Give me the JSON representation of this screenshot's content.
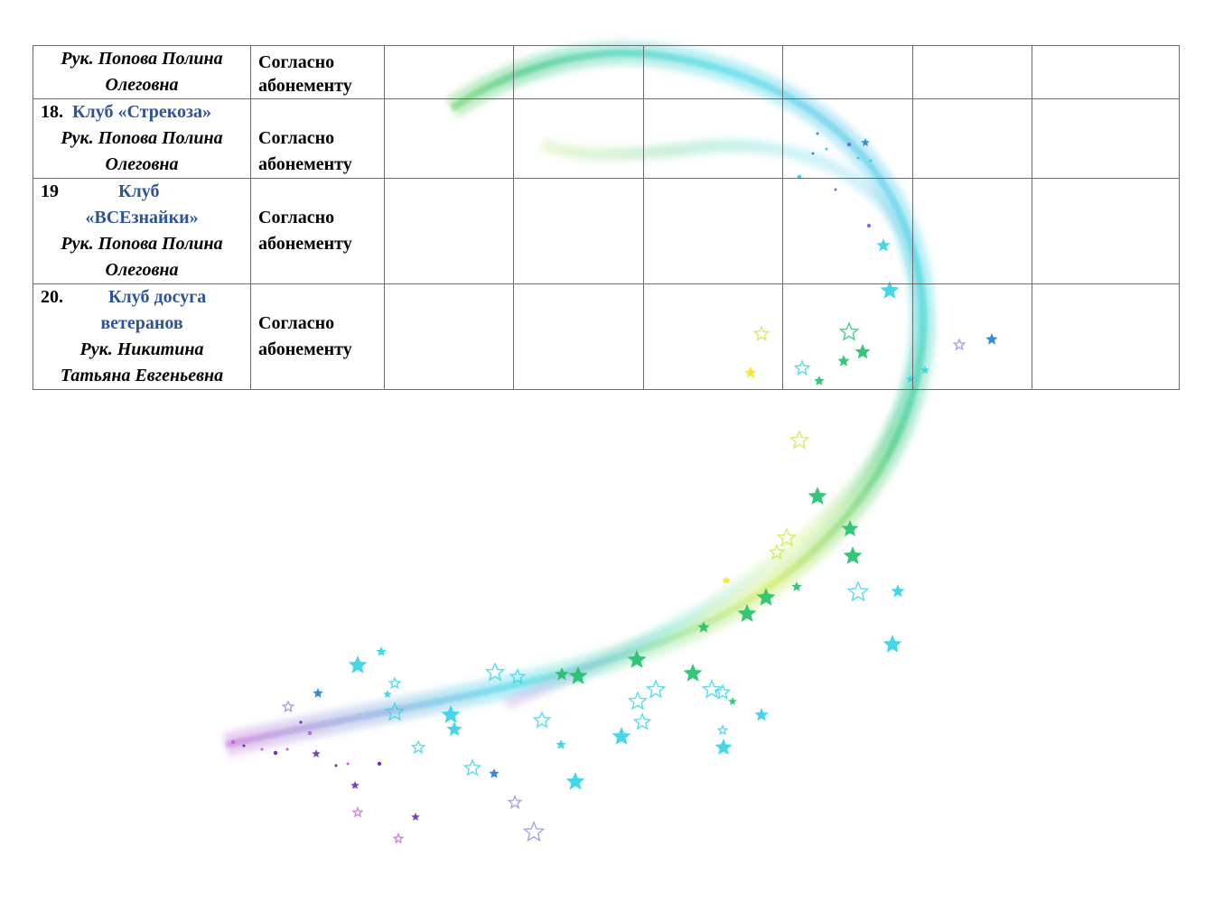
{
  "table": {
    "rows": [
      {
        "number": "",
        "club_lines": [],
        "head_lines": [
          "Рук. Попова Полина",
          "Олеговна"
        ],
        "mode_lines": [
          "Согласно",
          "абонементу"
        ],
        "empty_cells": 6
      },
      {
        "number": "18.",
        "club_lines": [
          "Клуб «Стрекоза»"
        ],
        "head_lines": [
          "Рук. Попова Полина",
          "Олеговна"
        ],
        "mode_lines": [
          "Согласно",
          "абонементу"
        ],
        "empty_cells": 6
      },
      {
        "number": "19",
        "club_lines": [
          "Клуб",
          "«ВСЕзнайки»"
        ],
        "head_lines": [
          "Рук. Попова Полина",
          "Олеговна"
        ],
        "mode_lines": [
          "Согласно",
          "абонементу"
        ],
        "empty_cells": 6
      },
      {
        "number": "20.",
        "club_lines": [
          "Клуб досуга",
          "ветеранов"
        ],
        "head_lines": [
          "Рук. Никитина",
          "Татьяна Евгеньевна"
        ],
        "mode_lines": [
          "Согласно",
          "абонементу"
        ],
        "empty_cells": 6
      }
    ]
  },
  "colors": {
    "club_title": "#2f5496",
    "border": "#6b6b6b",
    "swoosh": [
      "#c06ad0",
      "#7a6bd0",
      "#8a8fd8",
      "#2fd3e6",
      "#20c06a",
      "#c8e845",
      "#f4e418",
      "#1f7fd0",
      "#6a2fb0"
    ]
  },
  "decoration": {
    "description_icon": "star-icon"
  }
}
